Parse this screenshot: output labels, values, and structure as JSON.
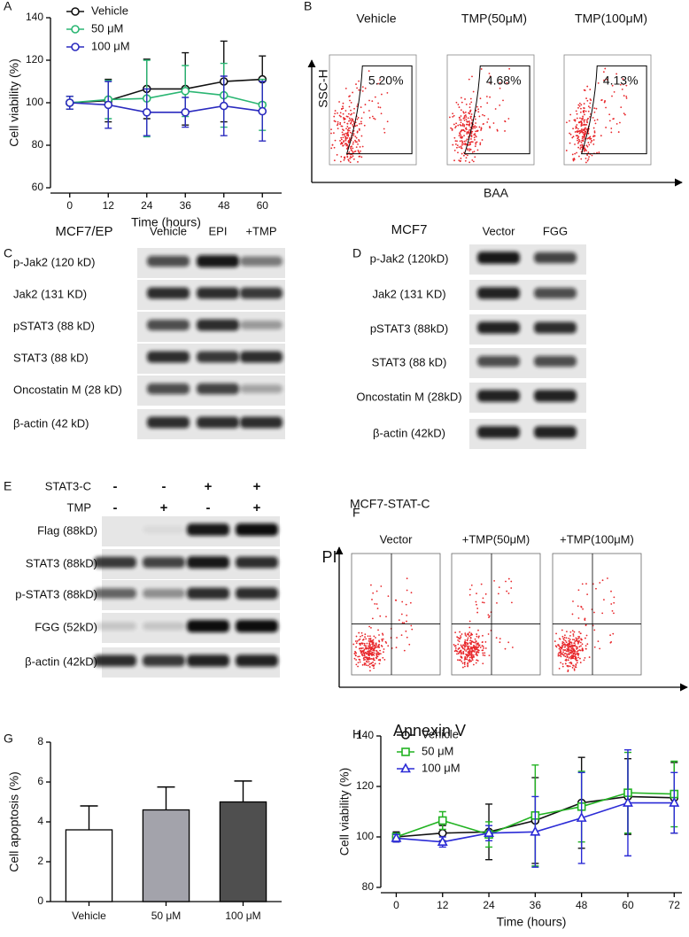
{
  "panel_labels": [
    "A",
    "B",
    "C",
    "D",
    "E",
    "F",
    "G",
    "H"
  ],
  "chart_data": [
    {
      "type": "line",
      "y_label": "Cell viability (%)",
      "x_label": "Time (hours)",
      "x": [
        0,
        12,
        24,
        36,
        48,
        60
      ],
      "xlim": [
        -6,
        66
      ],
      "xticks": [
        0,
        12,
        24,
        36,
        48,
        60
      ],
      "ylim": [
        60,
        140
      ],
      "yticks": [
        60,
        80,
        100,
        120,
        140
      ],
      "series": [
        {
          "name": "Vehicle",
          "color": "#111111",
          "marker": "circle",
          "values": [
            100,
            101,
            106.5,
            106.5,
            110,
            111
          ],
          "errors": [
            3,
            10,
            14,
            17,
            19,
            11
          ]
        },
        {
          "name": "50 μM",
          "color": "#2bb673",
          "marker": "circle",
          "values": [
            100,
            101.5,
            102,
            105.5,
            103.5,
            99
          ],
          "errors": [
            3,
            9,
            18,
            12,
            15,
            12
          ]
        },
        {
          "name": "100 μM",
          "color": "#2b2bbf",
          "marker": "circle",
          "values": [
            100,
            99,
            95.5,
            95.5,
            98.5,
            96
          ],
          "errors": [
            3,
            11,
            11,
            7,
            14,
            14
          ]
        }
      ]
    },
    {
      "type": "bar",
      "y_label": "Cell apoptosis (%)",
      "categories": [
        "Vehicle",
        "50 μM",
        "100 μM"
      ],
      "values": [
        3.6,
        4.6,
        5.0
      ],
      "errors": [
        1.2,
        1.15,
        1.05
      ],
      "colors": [
        "#ffffff",
        "#a3a3ab",
        "#4f4f4f"
      ],
      "ylim": [
        0,
        8
      ],
      "yticks": [
        0,
        2,
        4,
        6,
        8
      ]
    },
    {
      "type": "line",
      "y_label": "Cell viability (%)",
      "x_label": "Time (hours)",
      "x": [
        0,
        12,
        24,
        36,
        48,
        60,
        72
      ],
      "xlim": [
        -4,
        74
      ],
      "xticks": [
        0,
        12,
        24,
        36,
        48,
        60,
        72
      ],
      "ylim": [
        80,
        140
      ],
      "yticks": [
        80,
        100,
        120,
        140
      ],
      "series": [
        {
          "name": "Vehicle",
          "color": "#111111",
          "marker": "circle",
          "values": [
            100,
            101.5,
            102,
            106.5,
            113.5,
            116,
            115.5
          ],
          "errors": [
            2,
            3,
            11,
            17,
            18,
            15,
            14
          ]
        },
        {
          "name": "50 μM",
          "color": "#22b322",
          "marker": "square",
          "values": [
            100,
            106.5,
            101,
            108.5,
            112,
            117.5,
            117
          ],
          "errors": [
            1.5,
            3.5,
            5,
            20,
            14,
            16,
            13
          ]
        },
        {
          "name": "100 μM",
          "color": "#2b2bd6",
          "marker": "triangle",
          "values": [
            99.5,
            98,
            101.5,
            102,
            107.5,
            113.5,
            113.5
          ],
          "errors": [
            1.5,
            2,
            3,
            14,
            18,
            21,
            12
          ]
        }
      ]
    }
  ],
  "flow_b": {
    "y_label": "SSC-H",
    "x_label": "BAA",
    "plots": [
      {
        "title": "Vehicle",
        "gate": "5.20%"
      },
      {
        "title": "TMP(50μM)",
        "gate": "4.68%"
      },
      {
        "title": "TMP(100μM)",
        "gate": "4.13%"
      }
    ]
  },
  "blot_c": {
    "cell_line": "MCF7/EP",
    "lanes": [
      "Vehicle",
      "EPI",
      "+TMP"
    ],
    "rows": [
      "p-Jak2 (120 kD)",
      "Jak2 (131 KD)",
      "pSTAT3 (88 kD)",
      "STAT3 (88 kD)",
      "Oncostatin M (28 kD)",
      "β-actin (42 kD)"
    ]
  },
  "blot_d": {
    "cell_line": "MCF7",
    "lanes": [
      "Vector",
      "FGG"
    ],
    "rows": [
      "p-Jak2 (120kD)",
      "Jak2 (131 KD)",
      "pSTAT3 (88kD)",
      "STAT3 (88 kD)",
      "Oncostatin M (28kD)",
      "β-actin (42kD)"
    ]
  },
  "blot_e": {
    "conditions": [
      {
        "name": "STAT3-C",
        "signs": [
          "-",
          "-",
          "+",
          "+"
        ]
      },
      {
        "name": "TMP",
        "signs": [
          "-",
          "+",
          "-",
          "+"
        ]
      }
    ],
    "rows": [
      "Flag (88kD)",
      "STAT3 (88kD)",
      "p-STAT3 (88kD)",
      "FGG (52kD)",
      "β-actin (42kD)"
    ]
  },
  "flow_f": {
    "cell_line": "MCF7-STAT-C",
    "y_label": "PI",
    "x_label": "Annexin V",
    "plots": [
      "Vector",
      "+TMP(50μM)",
      "+TMP(100μM)"
    ]
  }
}
